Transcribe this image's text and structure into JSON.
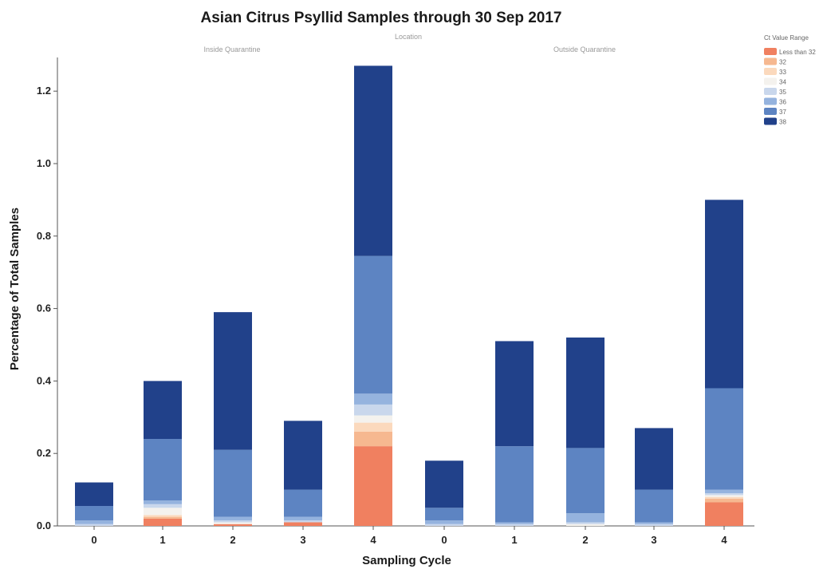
{
  "chart_data": {
    "type": "bar",
    "stacked": true,
    "title": "Asian Citrus Psyllid Samples through 30 Sep 2017",
    "facet_header": "Location",
    "panels": [
      "Inside Quarantine",
      "Outside Quarantine"
    ],
    "xlabel": "Sampling Cycle",
    "ylabel": "Percentage of Total Samples",
    "ylim": [
      0,
      1.3
    ],
    "yticks": [
      0.0,
      0.2,
      0.4,
      0.6,
      0.8,
      1.0,
      1.2
    ],
    "categories": [
      "0",
      "1",
      "2",
      "3",
      "4",
      "0",
      "1",
      "2",
      "3",
      "4"
    ],
    "legend": {
      "title": "Ct Value Range",
      "position": "top-right"
    },
    "series": [
      {
        "name": "Less than 32",
        "color": "#f08060",
        "values": [
          0.0,
          0.02,
          0.005,
          0.01,
          0.22,
          0.0,
          0.0,
          0.0,
          0.0,
          0.065
        ]
      },
      {
        "name": "32",
        "color": "#f6b890",
        "values": [
          0.0,
          0.005,
          0.0,
          0.0,
          0.04,
          0.0,
          0.0,
          0.0,
          0.0,
          0.01
        ]
      },
      {
        "name": "33",
        "color": "#fbd9bd",
        "values": [
          0.0,
          0.005,
          0.0,
          0.0,
          0.025,
          0.0,
          0.0,
          0.0,
          0.0,
          0.005
        ]
      },
      {
        "name": "34",
        "color": "#f4f2ee",
        "values": [
          0.0,
          0.02,
          0.005,
          0.0,
          0.02,
          0.0,
          0.0,
          0.005,
          0.0,
          0.005
        ]
      },
      {
        "name": "35",
        "color": "#c9d7ec",
        "values": [
          0.005,
          0.01,
          0.005,
          0.005,
          0.03,
          0.005,
          0.005,
          0.005,
          0.005,
          0.005
        ]
      },
      {
        "name": "36",
        "color": "#95b3de",
        "values": [
          0.01,
          0.01,
          0.01,
          0.01,
          0.03,
          0.01,
          0.005,
          0.025,
          0.005,
          0.01
        ]
      },
      {
        "name": "37",
        "color": "#5d84c2",
        "values": [
          0.04,
          0.17,
          0.185,
          0.075,
          0.38,
          0.035,
          0.21,
          0.18,
          0.09,
          0.28
        ]
      },
      {
        "name": "38",
        "color": "#21418a",
        "values": [
          0.065,
          0.16,
          0.38,
          0.19,
          0.525,
          0.13,
          0.29,
          0.305,
          0.17,
          0.52
        ]
      }
    ]
  }
}
